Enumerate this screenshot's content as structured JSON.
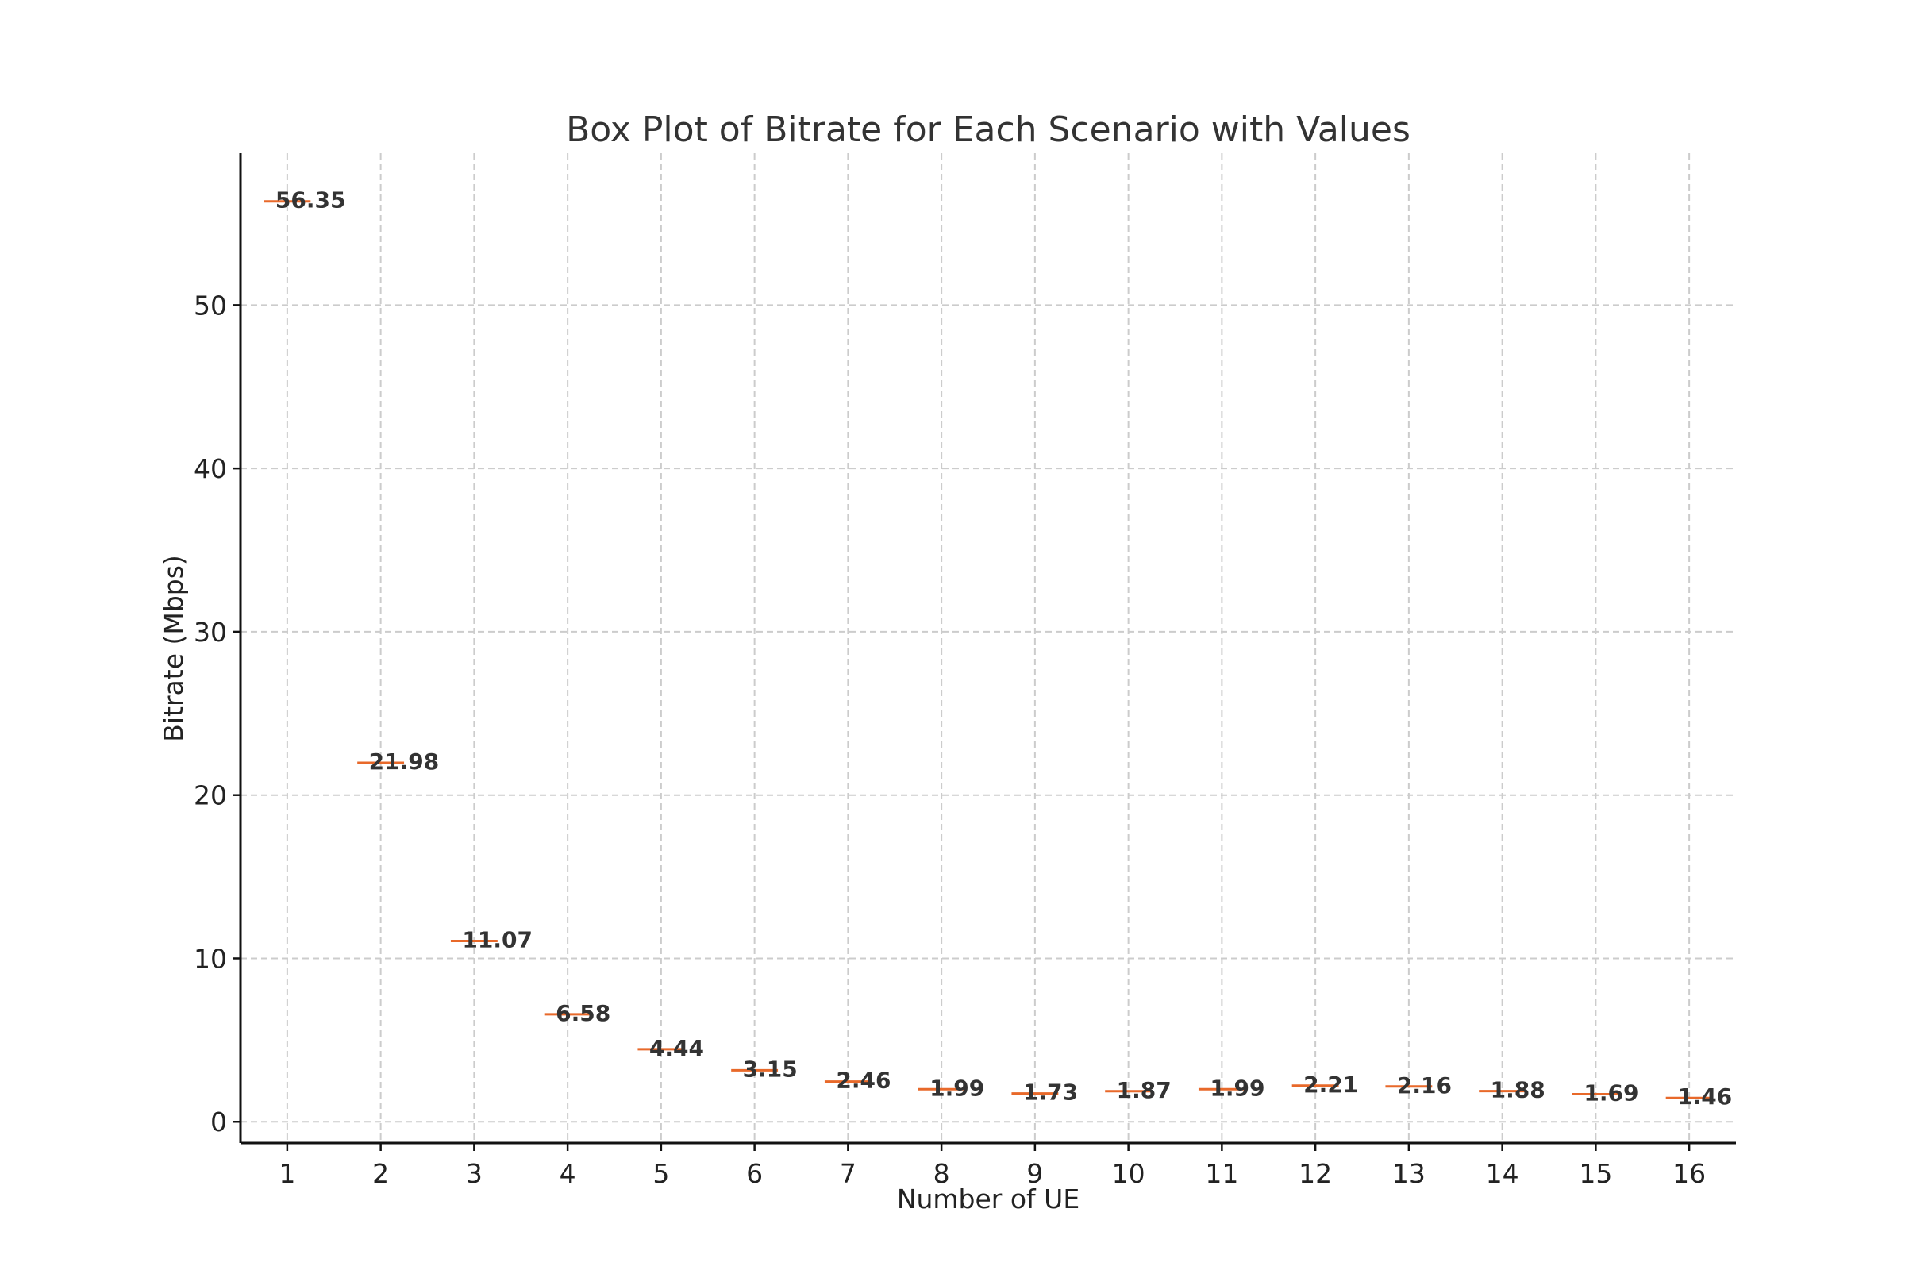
{
  "chart_data": {
    "type": "box",
    "title": "Box Plot of Bitrate for Each Scenario with Values",
    "xlabel": "Number of UE",
    "ylabel": "Bitrate (Mbps)",
    "categories": [
      "1",
      "2",
      "3",
      "4",
      "5",
      "6",
      "7",
      "8",
      "9",
      "10",
      "11",
      "12",
      "13",
      "14",
      "15",
      "16"
    ],
    "values": [
      56.35,
      21.98,
      11.07,
      6.58,
      4.44,
      3.15,
      2.46,
      1.99,
      1.73,
      1.87,
      1.99,
      2.21,
      2.16,
      1.88,
      1.69,
      1.46
    ],
    "value_labels": [
      "56.35",
      "21.98",
      "11.07",
      "6.58",
      "4.44",
      "3.15",
      "2.46",
      "1.99",
      "1.73",
      "1.87",
      "1.99",
      "2.21",
      "2.16",
      "1.88",
      "1.69",
      "1.46"
    ],
    "y_ticks": [
      0,
      10,
      20,
      30,
      40,
      50
    ],
    "y_tick_labels": [
      "0",
      "10",
      "20",
      "30",
      "40",
      "50"
    ],
    "ylim": [
      -1.3,
      59.3
    ],
    "grid": true,
    "median_color": "#e8692a"
  }
}
